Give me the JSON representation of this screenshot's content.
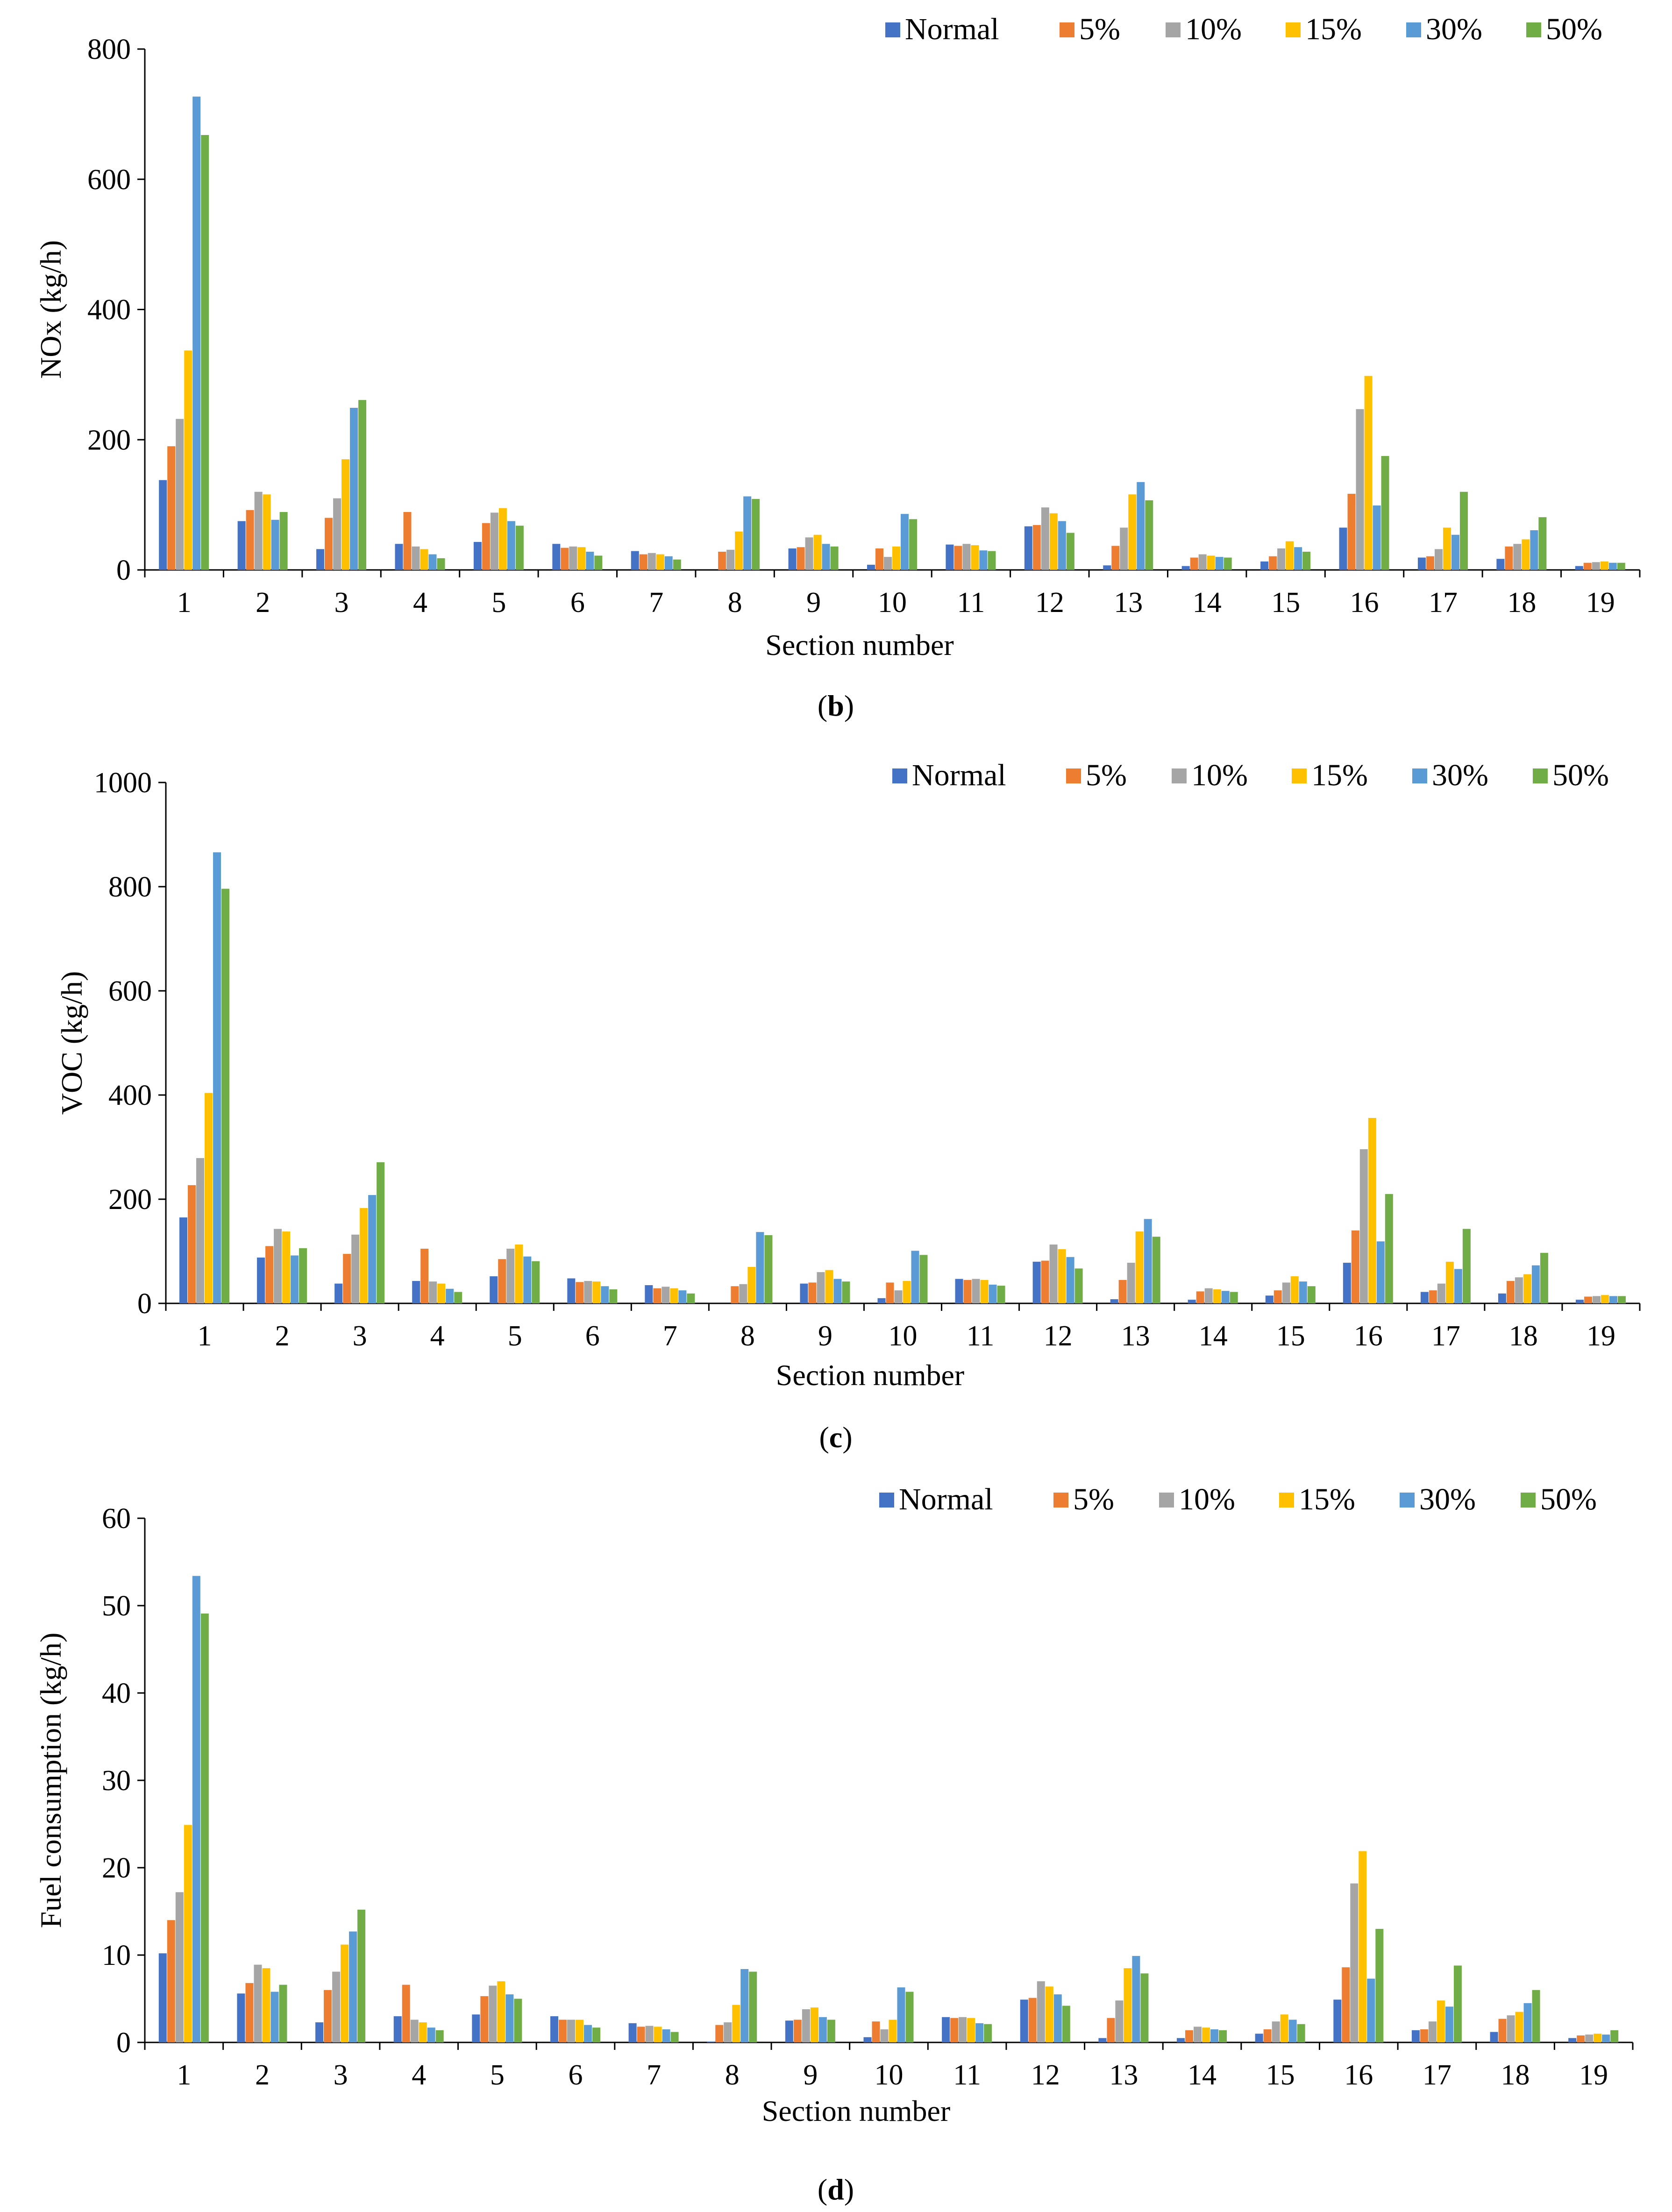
{
  "colors": {
    "Normal": "#4472C4",
    "5%": "#ED7D31",
    "10%": "#A5A5A5",
    "15%": "#FFC000",
    "30%": "#5B9BD5",
    "50%": "#70AD47"
  },
  "chart_data": [
    {
      "type": "bar",
      "panel_label": "b",
      "ylabel": "NOx (kg/h)",
      "xlabel": "Section number",
      "ylim": [
        0,
        800
      ],
      "yticks": [
        0,
        200,
        400,
        600,
        800
      ],
      "legend_position": "top-right",
      "categories": [
        "1",
        "2",
        "3",
        "4",
        "5",
        "6",
        "7",
        "8",
        "9",
        "10",
        "11",
        "12",
        "13",
        "14",
        "15",
        "16",
        "17",
        "18",
        "19"
      ],
      "series": [
        {
          "name": "Normal",
          "values": [
            138,
            75,
            32,
            40,
            43,
            40,
            29,
            0,
            33,
            8,
            39,
            67,
            7,
            6,
            13,
            65,
            19,
            17,
            6
          ]
        },
        {
          "name": "5%",
          "values": [
            190,
            92,
            80,
            89,
            72,
            34,
            24,
            28,
            35,
            33,
            37,
            69,
            37,
            19,
            21,
            117,
            21,
            36,
            11
          ]
        },
        {
          "name": "10%",
          "values": [
            232,
            120,
            110,
            36,
            88,
            36,
            26,
            31,
            50,
            20,
            40,
            96,
            65,
            24,
            33,
            247,
            32,
            40,
            12
          ]
        },
        {
          "name": "15%",
          "values": [
            337,
            116,
            170,
            32,
            95,
            35,
            24,
            59,
            54,
            36,
            38,
            87,
            116,
            22,
            44,
            298,
            65,
            47,
            13
          ]
        },
        {
          "name": "30%",
          "values": [
            727,
            77,
            249,
            24,
            75,
            28,
            21,
            113,
            40,
            86,
            30,
            75,
            135,
            20,
            35,
            99,
            54,
            61,
            11
          ]
        },
        {
          "name": "50%",
          "values": [
            668,
            89,
            261,
            18,
            68,
            22,
            16,
            109,
            36,
            78,
            29,
            57,
            107,
            19,
            28,
            175,
            120,
            81,
            11
          ]
        }
      ]
    },
    {
      "type": "bar",
      "panel_label": "c",
      "ylabel": "VOC (kg/h)",
      "xlabel": "Section number",
      "ylim": [
        0,
        1000
      ],
      "yticks": [
        0,
        200,
        400,
        600,
        800,
        1000
      ],
      "legend_position": "top-right",
      "categories": [
        "1",
        "2",
        "3",
        "4",
        "5",
        "6",
        "7",
        "8",
        "9",
        "10",
        "11",
        "12",
        "13",
        "14",
        "15",
        "16",
        "17",
        "18",
        "19"
      ],
      "series": [
        {
          "name": "Normal",
          "values": [
            165,
            88,
            38,
            43,
            52,
            48,
            35,
            0,
            38,
            10,
            47,
            80,
            8,
            7,
            15,
            78,
            22,
            19,
            7
          ]
        },
        {
          "name": "5%",
          "values": [
            227,
            110,
            95,
            105,
            85,
            41,
            29,
            33,
            40,
            40,
            45,
            82,
            45,
            23,
            25,
            140,
            25,
            43,
            13
          ]
        },
        {
          "name": "10%",
          "values": [
            279,
            143,
            132,
            42,
            105,
            43,
            32,
            37,
            60,
            25,
            47,
            113,
            78,
            29,
            40,
            296,
            38,
            50,
            14
          ]
        },
        {
          "name": "15%",
          "values": [
            404,
            138,
            183,
            38,
            113,
            42,
            29,
            70,
            64,
            43,
            45,
            104,
            138,
            27,
            52,
            356,
            80,
            56,
            16
          ]
        },
        {
          "name": "30%",
          "values": [
            866,
            92,
            208,
            28,
            90,
            33,
            25,
            137,
            47,
            101,
            36,
            89,
            162,
            24,
            42,
            119,
            66,
            73,
            14
          ]
        },
        {
          "name": "50%",
          "values": [
            796,
            106,
            271,
            22,
            81,
            27,
            19,
            131,
            42,
            93,
            34,
            67,
            128,
            22,
            33,
            210,
            143,
            97,
            14
          ]
        }
      ]
    },
    {
      "type": "bar",
      "panel_label": "d",
      "ylabel": "Fuel consumption (kg/h)",
      "xlabel": "Section number",
      "ylim": [
        0,
        60
      ],
      "yticks": [
        0,
        10,
        20,
        30,
        40,
        50,
        60
      ],
      "legend_position": "top-right",
      "categories": [
        "1",
        "2",
        "3",
        "4",
        "5",
        "6",
        "7",
        "8",
        "9",
        "10",
        "11",
        "12",
        "13",
        "14",
        "15",
        "16",
        "17",
        "18",
        "19"
      ],
      "series": [
        {
          "name": "Normal",
          "values": [
            10.2,
            5.6,
            2.3,
            3.0,
            3.2,
            3.0,
            2.2,
            0.1,
            2.5,
            0.6,
            2.9,
            4.9,
            0.5,
            0.5,
            1.0,
            4.9,
            1.4,
            1.2,
            0.5
          ]
        },
        {
          "name": "5%",
          "values": [
            14.0,
            6.8,
            6.0,
            6.6,
            5.3,
            2.6,
            1.8,
            2.0,
            2.6,
            2.4,
            2.8,
            5.1,
            2.8,
            1.4,
            1.5,
            8.6,
            1.5,
            2.7,
            0.8
          ]
        },
        {
          "name": "10%",
          "values": [
            17.2,
            8.9,
            8.1,
            2.6,
            6.5,
            2.6,
            1.9,
            2.3,
            3.8,
            1.5,
            2.9,
            7.0,
            4.8,
            1.8,
            2.4,
            18.2,
            2.4,
            3.1,
            0.9
          ]
        },
        {
          "name": "15%",
          "values": [
            24.9,
            8.5,
            11.2,
            2.3,
            7.0,
            2.6,
            1.8,
            4.3,
            4.0,
            2.6,
            2.8,
            6.4,
            8.5,
            1.7,
            3.2,
            21.9,
            4.8,
            3.5,
            1.0
          ]
        },
        {
          "name": "30%",
          "values": [
            53.4,
            5.8,
            12.7,
            1.7,
            5.5,
            2.0,
            1.5,
            8.4,
            2.9,
            6.3,
            2.2,
            5.5,
            9.9,
            1.5,
            2.6,
            7.3,
            4.1,
            4.5,
            0.9
          ]
        },
        {
          "name": "50%",
          "values": [
            49.1,
            6.6,
            15.2,
            1.4,
            5.0,
            1.7,
            1.2,
            8.1,
            2.6,
            5.8,
            2.1,
            4.2,
            7.9,
            1.4,
            2.1,
            13.0,
            8.8,
            6.0,
            1.4
          ]
        }
      ]
    }
  ]
}
